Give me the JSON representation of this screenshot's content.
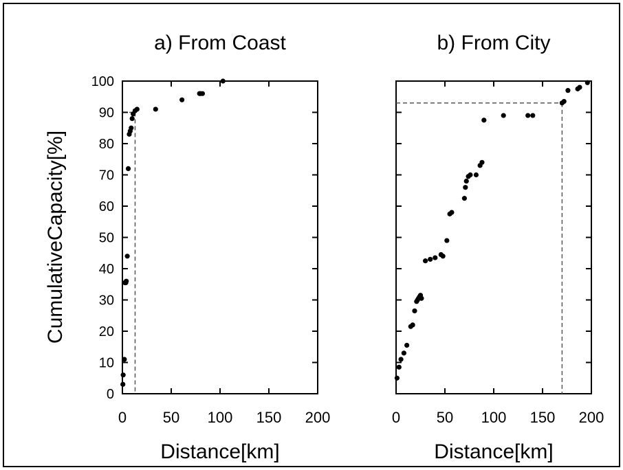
{
  "frame_color": "#000000",
  "ylabel": "CumulativeCapacity[%]",
  "marker_color": "#000000",
  "reference_line_color": "#555555",
  "chart_data": [
    {
      "type": "scatter",
      "title": "a) From Coast",
      "xlabel": "Distance[km]",
      "ylabel": "CumulativeCapacity[%]",
      "xlim": [
        0,
        200
      ],
      "ylim": [
        0,
        100
      ],
      "xticks": [
        "0",
        "50",
        "100",
        "150",
        "200"
      ],
      "yticks": [
        "0",
        "10",
        "20",
        "30",
        "40",
        "50",
        "60",
        "70",
        "80",
        "90",
        "100"
      ],
      "grid": false,
      "legend": "none",
      "x": [
        0.5,
        0.8,
        2,
        2.5,
        3.5,
        4,
        5,
        6,
        7,
        8,
        9,
        10,
        11,
        13,
        15,
        34,
        61,
        79,
        80,
        82,
        103
      ],
      "y": [
        3,
        6,
        11,
        35.5,
        35.5,
        36,
        44,
        72,
        83,
        84,
        85,
        88,
        89.5,
        90.5,
        91,
        91,
        94,
        96,
        96,
        96,
        100
      ],
      "reference_line": {
        "x": 13,
        "y": 90
      }
    },
    {
      "type": "scatter",
      "title": "b) From City",
      "xlabel": "Distance[km]",
      "ylabel": "",
      "xlim": [
        0,
        200
      ],
      "ylim": [
        0,
        100
      ],
      "xticks": [
        "0",
        "50",
        "100",
        "150",
        "200"
      ],
      "yticks": [],
      "grid": false,
      "legend": "none",
      "x": [
        1,
        3,
        5,
        8,
        11,
        15,
        17,
        19,
        21,
        22,
        23,
        24,
        25,
        26,
        30,
        35,
        40,
        46,
        48,
        52,
        55,
        57,
        70,
        71,
        72,
        74,
        76,
        82,
        86,
        88,
        90,
        110,
        135,
        140,
        170,
        172,
        176,
        186,
        188,
        196
      ],
      "y": [
        5,
        8.5,
        11,
        13,
        15.5,
        21.5,
        22,
        26.5,
        29.5,
        30,
        30.5,
        31,
        31.5,
        30.5,
        42.5,
        43,
        43.5,
        44.5,
        44,
        49,
        57.5,
        58,
        62.5,
        66,
        68,
        69.5,
        70,
        70,
        73,
        74,
        87.5,
        89,
        89,
        89,
        93,
        93.5,
        97,
        97.5,
        98,
        99.5
      ],
      "reference_line": {
        "x": 170,
        "y": 93
      }
    }
  ]
}
